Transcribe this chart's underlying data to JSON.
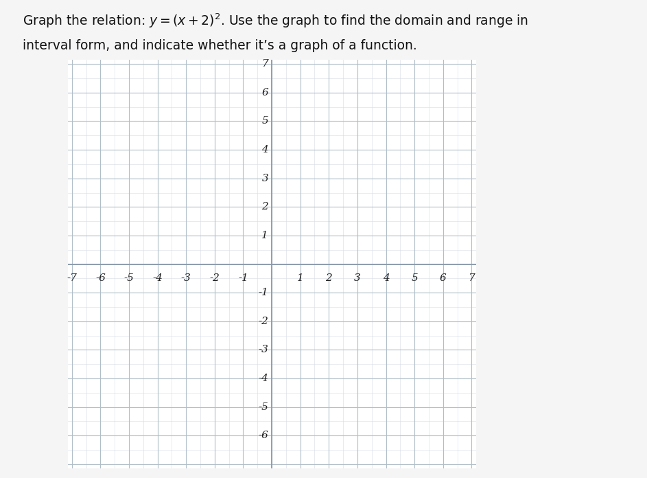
{
  "title_line1": "Graph the relation: $y = (x + 2)^2$. Use the graph to find the domain and range in",
  "title_line2": "interval form, and indicate whether it’s a graph of a function.",
  "title_fontsize": 13.5,
  "xmin": -7,
  "xmax": 7,
  "ymin": -7,
  "ymax": 7,
  "xticks": [
    -7,
    -6,
    -5,
    -4,
    -3,
    -2,
    -1,
    1,
    2,
    3,
    4,
    5,
    6,
    7
  ],
  "yticks": [
    -6,
    -5,
    -4,
    -3,
    -2,
    -1,
    1,
    2,
    3,
    4,
    5,
    6,
    7
  ],
  "major_grid_color": "#b0bec8",
  "minor_grid_color": "#d4dce4",
  "axis_line_color": "#8899aa",
  "tick_label_color": "#222222",
  "tick_fontsize": 11,
  "background_color": "#f5f5f5",
  "plot_bg_color": "#ffffff",
  "figsize": [
    9.43,
    6.96
  ],
  "dpi": 100,
  "subdivisions": 2
}
